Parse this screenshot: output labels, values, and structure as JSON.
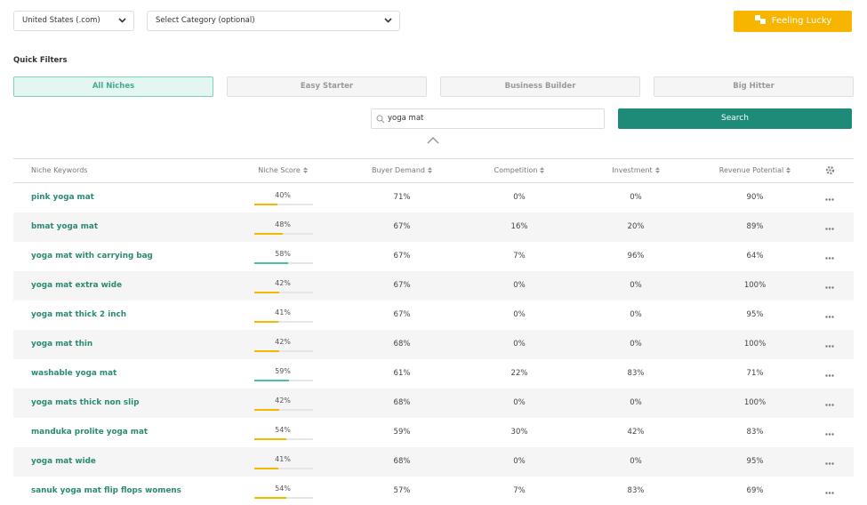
{
  "toolbar": {
    "marketplace": "United States (.com)",
    "category": "Select Category (optional)",
    "lucky_button": "Feeling Lucky"
  },
  "quick_filters": {
    "title": "Quick Filters",
    "tabs": [
      "All Niches",
      "Easy Starter",
      "Business Builder",
      "Big Hitter"
    ]
  },
  "search": {
    "query": "yoga mat",
    "button": "Search"
  },
  "table": {
    "headers": [
      "Niche Keywords",
      "Niche Score",
      "Buyer Demand",
      "Competition",
      "Investment",
      "Revenue Potential"
    ],
    "rows": [
      {
        "keyword": "pink yoga mat",
        "score": {
          "value": 40,
          "label": "40%"
        },
        "bar_color": "#f5b800",
        "buyer_demand": "71%",
        "competition": "0%",
        "investment": "0%",
        "revenue_potential": "90%"
      },
      {
        "keyword": "bmat yoga mat",
        "score": {
          "value": 48,
          "label": "48%"
        },
        "bar_color": "#f5b800",
        "buyer_demand": "67%",
        "competition": "16%",
        "investment": "20%",
        "revenue_potential": "89%"
      },
      {
        "keyword": "yoga mat with carrying bag",
        "score": {
          "value": 58,
          "label": "58%"
        },
        "bar_color": "#4dbfa8",
        "buyer_demand": "67%",
        "competition": "7%",
        "investment": "96%",
        "revenue_potential": "64%"
      },
      {
        "keyword": "yoga mat extra wide",
        "score": {
          "value": 42,
          "label": "42%"
        },
        "bar_color": "#f5b800",
        "buyer_demand": "67%",
        "competition": "0%",
        "investment": "0%",
        "revenue_potential": "100%"
      },
      {
        "keyword": "yoga mat thick 2 inch",
        "score": {
          "value": 41,
          "label": "41%"
        },
        "bar_color": "#f5b800",
        "buyer_demand": "67%",
        "competition": "0%",
        "investment": "0%",
        "revenue_potential": "95%"
      },
      {
        "keyword": "yoga mat thin",
        "score": {
          "value": 42,
          "label": "42%"
        },
        "bar_color": "#f5b800",
        "buyer_demand": "68%",
        "competition": "0%",
        "investment": "0%",
        "revenue_potential": "100%"
      },
      {
        "keyword": "washable yoga mat",
        "score": {
          "value": 59,
          "label": "59%"
        },
        "bar_color": "#4dbfa8",
        "buyer_demand": "61%",
        "competition": "22%",
        "investment": "83%",
        "revenue_potential": "71%"
      },
      {
        "keyword": "yoga mats thick non slip",
        "score": {
          "value": 42,
          "label": "42%"
        },
        "bar_color": "#f5b800",
        "buyer_demand": "68%",
        "competition": "0%",
        "investment": "0%",
        "revenue_potential": "100%"
      },
      {
        "keyword": "manduka prolite yoga mat",
        "score": {
          "value": 54,
          "label": "54%"
        },
        "bar_color": "#f5b800",
        "buyer_demand": "59%",
        "competition": "30%",
        "investment": "42%",
        "revenue_potential": "83%"
      },
      {
        "keyword": "yoga mat wide",
        "score": {
          "value": 41,
          "label": "41%"
        },
        "bar_color": "#f5b800",
        "buyer_demand": "68%",
        "competition": "0%",
        "investment": "0%",
        "revenue_potential": "95%"
      },
      {
        "keyword": "sanuk yoga mat flip flops womens",
        "score": {
          "value": 54,
          "label": "54%"
        },
        "bar_color": "#f5b800",
        "buyer_demand": "57%",
        "competition": "7%",
        "investment": "83%",
        "revenue_potential": "69%"
      }
    ]
  }
}
